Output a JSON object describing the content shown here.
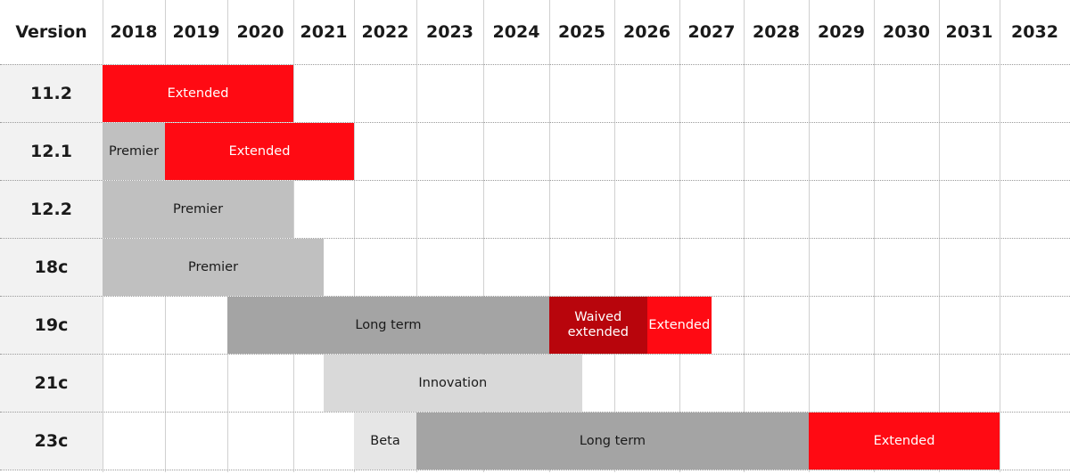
{
  "chart_data": {
    "type": "gantt",
    "corner_label": "Version",
    "years": [
      "2018",
      "2019",
      "2020",
      "2021",
      "2022",
      "2023",
      "2024",
      "2025",
      "2026",
      "2027",
      "2028",
      "2029",
      "2030",
      "2031",
      "2032"
    ],
    "rows": [
      {
        "version": "11.2",
        "bars": [
          {
            "label": "Extended",
            "start": 2018.0,
            "end": 2021.0,
            "color": "#ff0a13",
            "text_color": "#ffffff"
          }
        ]
      },
      {
        "version": "12.1",
        "bars": [
          {
            "label": "Premier",
            "start": 2018.0,
            "end": 2019.0,
            "color": "#c0c0c0",
            "text_color": "#1a1a1a"
          },
          {
            "label": "Extended",
            "start": 2019.0,
            "end": 2022.0,
            "color": "#ff0a13",
            "text_color": "#ffffff"
          }
        ]
      },
      {
        "version": "12.2",
        "bars": [
          {
            "label": "Premier",
            "start": 2018.0,
            "end": 2021.0,
            "color": "#c0c0c0",
            "text_color": "#1a1a1a"
          }
        ]
      },
      {
        "version": "18c",
        "bars": [
          {
            "label": "Premier",
            "start": 2018.0,
            "end": 2021.5,
            "color": "#c0c0c0",
            "text_color": "#1a1a1a"
          }
        ]
      },
      {
        "version": "19c",
        "bars": [
          {
            "label": "Long term",
            "start": 2020.0,
            "end": 2025.0,
            "color": "#a4a4a4",
            "text_color": "#1a1a1a"
          },
          {
            "label": "Waived extended",
            "start": 2025.0,
            "end": 2026.5,
            "color": "#b8050c",
            "text_color": "#ffffff"
          },
          {
            "label": "Extended",
            "start": 2026.5,
            "end": 2027.5,
            "color": "#ff0a13",
            "text_color": "#ffffff"
          }
        ]
      },
      {
        "version": "21c",
        "bars": [
          {
            "label": "Innovation",
            "start": 2021.5,
            "end": 2025.5,
            "color": "#d9d9d9",
            "text_color": "#1a1a1a"
          }
        ]
      },
      {
        "version": "23c",
        "bars": [
          {
            "label": "Beta",
            "start": 2022.0,
            "end": 2023.0,
            "color": "#e6e6e6",
            "text_color": "#1a1a1a"
          },
          {
            "label": "Long term",
            "start": 2023.0,
            "end": 2029.0,
            "color": "#a4a4a4",
            "text_color": "#1a1a1a"
          },
          {
            "label": "Extended",
            "start": 2029.0,
            "end": 2032.0,
            "color": "#ff0a13",
            "text_color": "#ffffff"
          }
        ]
      }
    ],
    "grid": true
  }
}
